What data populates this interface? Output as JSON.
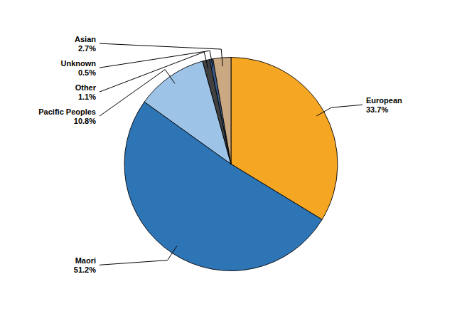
{
  "chart_data": {
    "type": "pie",
    "categories": [
      "European",
      "Maori",
      "Pacific Peoples",
      "Other",
      "Unknown",
      "Asian"
    ],
    "values": [
      33.7,
      51.2,
      10.8,
      1.1,
      0.5,
      2.7
    ],
    "value_labels": [
      "33.7%",
      "51.2%",
      "10.8%",
      "1.1%",
      "0.5%",
      "2.7%"
    ],
    "colors": [
      "#F5A623",
      "#2E75B6",
      "#9DC3E6",
      "#404040",
      "#3A5A8A",
      "#C9A882"
    ],
    "data_labels": true
  }
}
